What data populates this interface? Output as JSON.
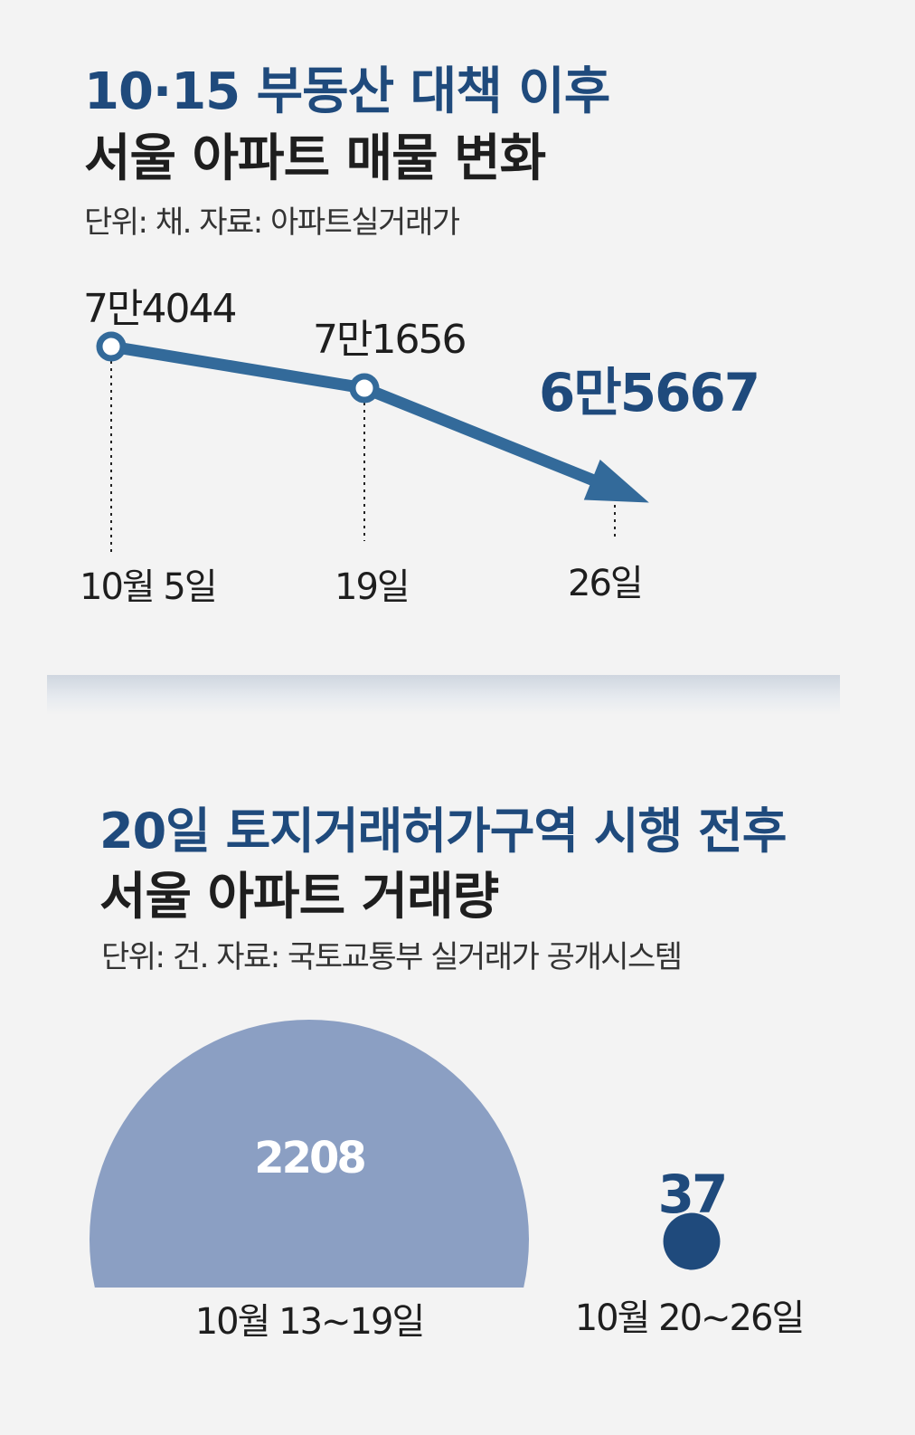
{
  "chart_data": [
    {
      "type": "line",
      "title": "10·15 부동산 대책 이후",
      "subtitle": "서울 아파트 매물 변화",
      "unit_note": "단위: 채. 자료: 아파트실거래가",
      "categories": [
        "10월 5일",
        "19일",
        "26일"
      ],
      "values": [
        74044,
        71656,
        65667
      ],
      "value_labels": [
        "7만4044",
        "7만1656",
        "6만5667"
      ],
      "colors": {
        "line": "#336a9a",
        "highlight_label": "#1f4a7c"
      }
    },
    {
      "type": "bar",
      "title": "20일 토지거래허가구역 시행 전후",
      "subtitle": "서울 아파트 거래량",
      "unit_note": "단위: 건. 자료: 국토교통부 실거래가 공개시스템",
      "categories": [
        "10월 13~19일",
        "10월 20~26일"
      ],
      "values": [
        2208,
        37
      ],
      "value_labels": [
        "2208",
        "37"
      ],
      "colors": {
        "big": "#8b9fc3",
        "small": "#1f4a7c"
      }
    }
  ]
}
